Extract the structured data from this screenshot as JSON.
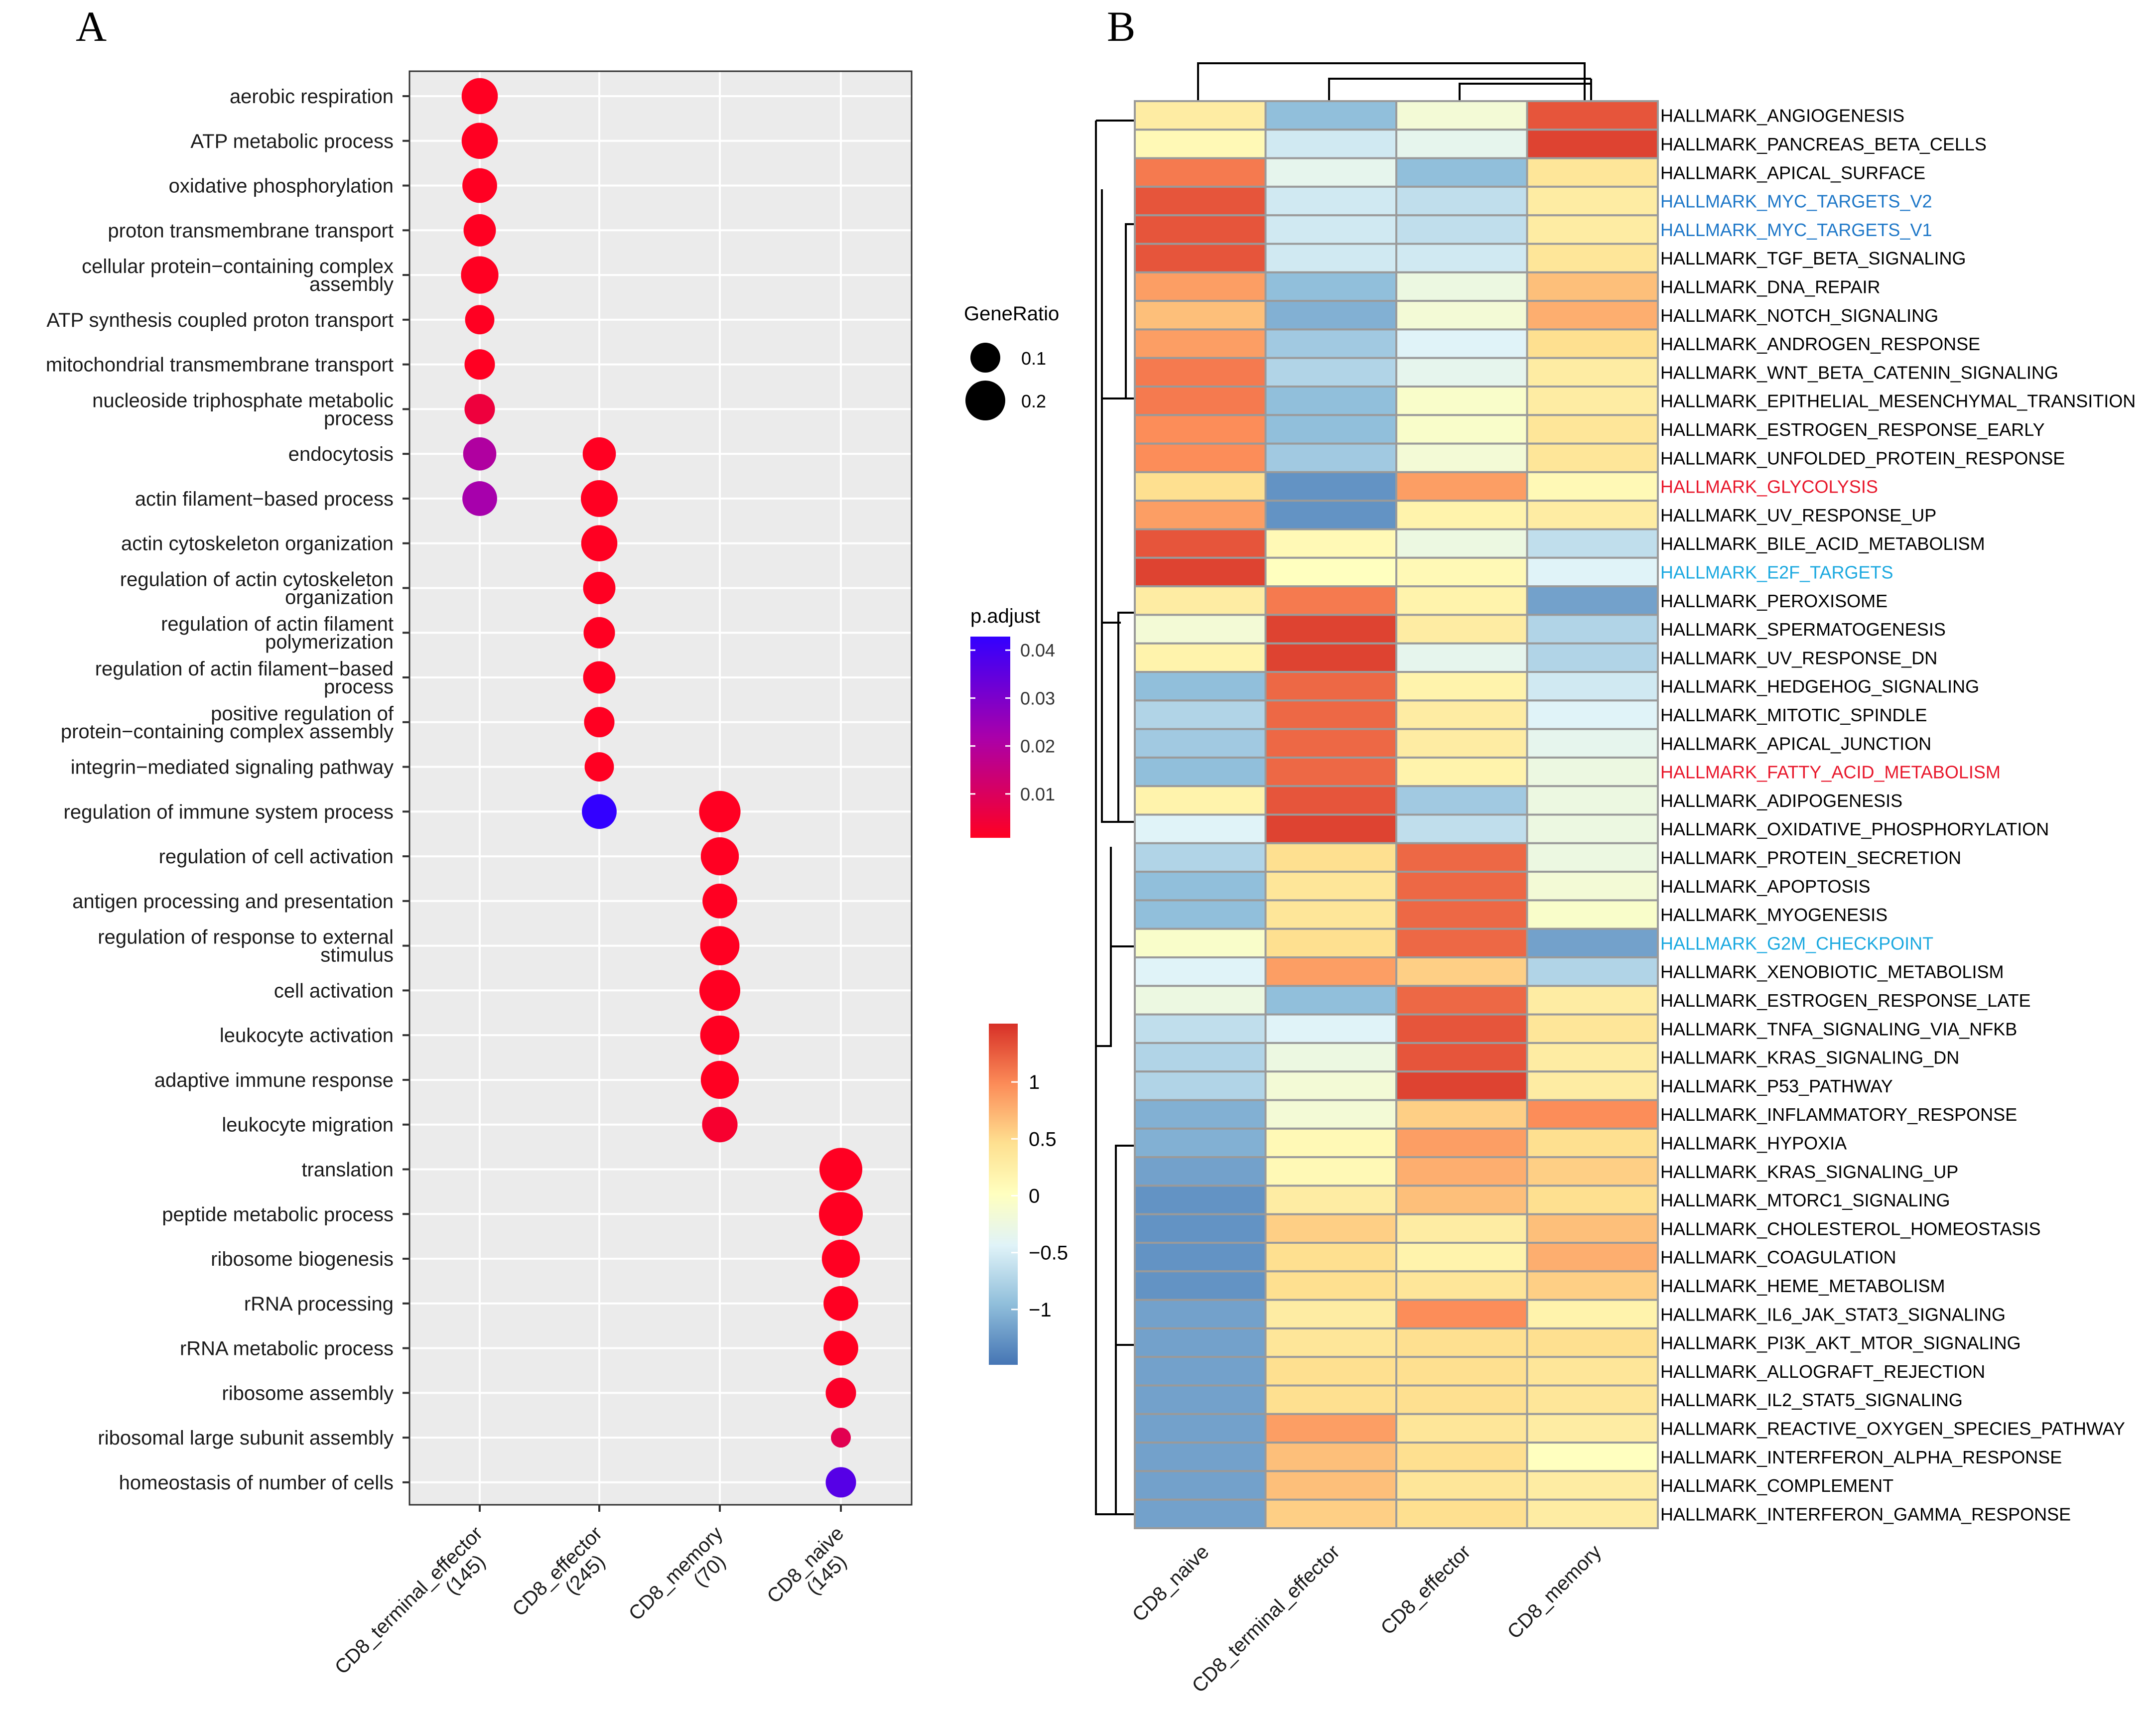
{
  "panel_a": {
    "letter": "A",
    "legend_size_title": "GeneRatio",
    "legend_size_labels": [
      "0.1",
      "0.2"
    ],
    "legend_color_title": "p.adjust",
    "legend_color_labels": [
      "0.04",
      "0.03",
      "0.02",
      "0.01"
    ],
    "legend_color_values": [
      0.04,
      0.03,
      0.02,
      0.01
    ],
    "colors": {
      "low": "#ff0000",
      "mid": "#aa00aa",
      "high": "#0000ff",
      "panel_bg": "#ebebeb",
      "grid": "#ffffff"
    }
  },
  "panel_b": {
    "letter": "B",
    "legend_ticks": [
      "1",
      "0.5",
      "0",
      "−0.5",
      "−1"
    ],
    "legend_values": [
      1,
      0.5,
      0,
      -0.5,
      -1
    ],
    "color_stops": [
      "#4575b4",
      "#91bfdb",
      "#e0f3f8",
      "#ffffbf",
      "#fee090",
      "#fc8d59",
      "#d73027"
    ],
    "label_colors": {
      "default": "#000000",
      "blue": "#1f78c8",
      "red": "#e8182c",
      "cyan": "#1ca9e0"
    }
  },
  "chart_data": [
    {
      "type": "scatter",
      "title": "",
      "xlabel": "",
      "ylabel": "",
      "categories": [
        "CD8_terminal_effector\n(145)",
        "CD8_effector\n(245)",
        "CD8_memory\n(70)",
        "CD8_naive\n(145)"
      ],
      "terms": [
        "aerobic respiration",
        "ATP metabolic process",
        "oxidative phosphorylation",
        "proton transmembrane transport",
        "cellular protein−containing complex\nassembly",
        "ATP synthesis coupled proton transport",
        "mitochondrial transmembrane transport",
        "nucleoside triphosphate metabolic\nprocess",
        "endocytosis",
        "actin filament−based process",
        "actin cytoskeleton organization",
        "regulation of actin cytoskeleton\norganization",
        "regulation of actin filament\npolymerization",
        "regulation of actin filament−based\nprocess",
        "positive regulation of\nprotein−containing complex assembly",
        "integrin−mediated signaling pathway",
        "regulation of immune system process",
        "regulation of cell activation",
        "antigen processing and presentation",
        "regulation of response to external\nstimulus",
        "cell activation",
        "leukocyte activation",
        "adaptive immune response",
        "leukocyte migration",
        "translation",
        "peptide metabolic process",
        "ribosome biogenesis",
        "rRNA processing",
        "rRNA metabolic process",
        "ribosome assembly",
        "ribosomal large subunit assembly",
        "homeostasis of number of cells"
      ],
      "points": [
        {
          "term": 0,
          "cat": 0,
          "gene_ratio": 0.17,
          "p_adjust": 0.001
        },
        {
          "term": 1,
          "cat": 0,
          "gene_ratio": 0.17,
          "p_adjust": 0.001
        },
        {
          "term": 2,
          "cat": 0,
          "gene_ratio": 0.15,
          "p_adjust": 0.001
        },
        {
          "term": 3,
          "cat": 0,
          "gene_ratio": 0.12,
          "p_adjust": 0.001
        },
        {
          "term": 4,
          "cat": 0,
          "gene_ratio": 0.19,
          "p_adjust": 0.001
        },
        {
          "term": 5,
          "cat": 0,
          "gene_ratio": 0.09,
          "p_adjust": 0.001
        },
        {
          "term": 6,
          "cat": 0,
          "gene_ratio": 0.1,
          "p_adjust": 0.001
        },
        {
          "term": 7,
          "cat": 0,
          "gene_ratio": 0.1,
          "p_adjust": 0.005
        },
        {
          "term": 8,
          "cat": 0,
          "gene_ratio": 0.13,
          "p_adjust": 0.02
        },
        {
          "term": 9,
          "cat": 0,
          "gene_ratio": 0.15,
          "p_adjust": 0.022
        },
        {
          "term": 8,
          "cat": 1,
          "gene_ratio": 0.13,
          "p_adjust": 0.001
        },
        {
          "term": 9,
          "cat": 1,
          "gene_ratio": 0.18,
          "p_adjust": 0.001
        },
        {
          "term": 10,
          "cat": 1,
          "gene_ratio": 0.17,
          "p_adjust": 0.001
        },
        {
          "term": 11,
          "cat": 1,
          "gene_ratio": 0.12,
          "p_adjust": 0.001
        },
        {
          "term": 12,
          "cat": 1,
          "gene_ratio": 0.11,
          "p_adjust": 0.001
        },
        {
          "term": 13,
          "cat": 1,
          "gene_ratio": 0.12,
          "p_adjust": 0.001
        },
        {
          "term": 14,
          "cat": 1,
          "gene_ratio": 0.1,
          "p_adjust": 0.001
        },
        {
          "term": 15,
          "cat": 1,
          "gene_ratio": 0.09,
          "p_adjust": 0.001
        },
        {
          "term": 16,
          "cat": 1,
          "gene_ratio": 0.15,
          "p_adjust": 0.042
        },
        {
          "term": 16,
          "cat": 2,
          "gene_ratio": 0.26,
          "p_adjust": 0.001
        },
        {
          "term": 17,
          "cat": 2,
          "gene_ratio": 0.2,
          "p_adjust": 0.001
        },
        {
          "term": 18,
          "cat": 2,
          "gene_ratio": 0.15,
          "p_adjust": 0.001
        },
        {
          "term": 19,
          "cat": 2,
          "gene_ratio": 0.22,
          "p_adjust": 0.001
        },
        {
          "term": 20,
          "cat": 2,
          "gene_ratio": 0.25,
          "p_adjust": 0.001
        },
        {
          "term": 21,
          "cat": 2,
          "gene_ratio": 0.22,
          "p_adjust": 0.001
        },
        {
          "term": 22,
          "cat": 2,
          "gene_ratio": 0.2,
          "p_adjust": 0.001
        },
        {
          "term": 23,
          "cat": 2,
          "gene_ratio": 0.16,
          "p_adjust": 0.003
        },
        {
          "term": 24,
          "cat": 3,
          "gene_ratio": 0.29,
          "p_adjust": 0.001
        },
        {
          "term": 25,
          "cat": 3,
          "gene_ratio": 0.31,
          "p_adjust": 0.001
        },
        {
          "term": 26,
          "cat": 3,
          "gene_ratio": 0.2,
          "p_adjust": 0.001
        },
        {
          "term": 27,
          "cat": 3,
          "gene_ratio": 0.15,
          "p_adjust": 0.001
        },
        {
          "term": 28,
          "cat": 3,
          "gene_ratio": 0.15,
          "p_adjust": 0.001
        },
        {
          "term": 29,
          "cat": 3,
          "gene_ratio": 0.1,
          "p_adjust": 0.002
        },
        {
          "term": 30,
          "cat": 3,
          "gene_ratio": 0.05,
          "p_adjust": 0.008
        },
        {
          "term": 31,
          "cat": 3,
          "gene_ratio": 0.1,
          "p_adjust": 0.036
        }
      ],
      "size_range": [
        0.05,
        0.31
      ],
      "color_range": [
        0.001,
        0.042
      ]
    },
    {
      "type": "heatmap",
      "title": "",
      "xlabel": "",
      "ylabel": "",
      "columns": [
        "CD8_naive",
        "CD8_terminal_effector",
        "CD8_effector",
        "CD8_memory"
      ],
      "rows": [
        "HALLMARK_ANGIOGENESIS",
        "HALLMARK_PANCREAS_BETA_CELLS",
        "HALLMARK_APICAL_SURFACE",
        "HALLMARK_MYC_TARGETS_V2",
        "HALLMARK_MYC_TARGETS_V1",
        "HALLMARK_TGF_BETA_SIGNALING",
        "HALLMARK_DNA_REPAIR",
        "HALLMARK_NOTCH_SIGNALING",
        "HALLMARK_ANDROGEN_RESPONSE",
        "HALLMARK_WNT_BETA_CATENIN_SIGNALING",
        "HALLMARK_EPITHELIAL_MESENCHYMAL_TRANSITION",
        "HALLMARK_ESTROGEN_RESPONSE_EARLY",
        "HALLMARK_UNFOLDED_PROTEIN_RESPONSE",
        "HALLMARK_GLYCOLYSIS",
        "HALLMARK_UV_RESPONSE_UP",
        "HALLMARK_BILE_ACID_METABOLISM",
        "HALLMARK_E2F_TARGETS",
        "HALLMARK_PEROXISOME",
        "HALLMARK_SPERMATOGENESIS",
        "HALLMARK_UV_RESPONSE_DN",
        "HALLMARK_HEDGEHOG_SIGNALING",
        "HALLMARK_MITOTIC_SPINDLE",
        "HALLMARK_APICAL_JUNCTION",
        "HALLMARK_FATTY_ACID_METABOLISM",
        "HALLMARK_ADIPOGENESIS",
        "HALLMARK_OXIDATIVE_PHOSPHORYLATION",
        "HALLMARK_PROTEIN_SECRETION",
        "HALLMARK_APOPTOSIS",
        "HALLMARK_MYOGENESIS",
        "HALLMARK_G2M_CHECKPOINT",
        "HALLMARK_XENOBIOTIC_METABOLISM",
        "HALLMARK_ESTROGEN_RESPONSE_LATE",
        "HALLMARK_TNFA_SIGNALING_VIA_NFKB",
        "HALLMARK_KRAS_SIGNALING_DN",
        "HALLMARK_P53_PATHWAY",
        "HALLMARK_INFLAMMATORY_RESPONSE",
        "HALLMARK_HYPOXIA",
        "HALLMARK_KRAS_SIGNALING_UP",
        "HALLMARK_MTORC1_SIGNALING",
        "HALLMARK_CHOLESTEROL_HOMEOSTASIS",
        "HALLMARK_COAGULATION",
        "HALLMARK_HEME_METABOLISM",
        "HALLMARK_IL6_JAK_STAT3_SIGNALING",
        "HALLMARK_PI3K_AKT_MTOR_SIGNALING",
        "HALLMARK_ALLOGRAFT_REJECTION",
        "HALLMARK_IL2_STAT5_SIGNALING",
        "HALLMARK_REACTIVE_OXYGEN_SPECIES_PATHWAY",
        "HALLMARK_INTERFERON_ALPHA_RESPONSE",
        "HALLMARK_COMPLEMENT",
        "HALLMARK_INTERFERON_GAMMA_RESPONSE"
      ],
      "row_label_colors": [
        "default",
        "default",
        "default",
        "blue",
        "blue",
        "default",
        "default",
        "default",
        "default",
        "default",
        "default",
        "default",
        "default",
        "red",
        "default",
        "default",
        "cyan",
        "default",
        "default",
        "default",
        "default",
        "default",
        "default",
        "red",
        "default",
        "default",
        "default",
        "default",
        "default",
        "cyan",
        "default",
        "default",
        "default",
        "default",
        "default",
        "default",
        "default",
        "default",
        "default",
        "default",
        "default",
        "default",
        "default",
        "default",
        "default",
        "default",
        "default",
        "default",
        "default",
        "default"
      ],
      "values": [
        [
          0.3,
          -1.0,
          -0.2,
          1.3
        ],
        [
          0.1,
          -0.6,
          -0.4,
          1.4
        ],
        [
          1.1,
          -0.4,
          -1.0,
          0.4
        ],
        [
          1.3,
          -0.6,
          -0.7,
          0.3
        ],
        [
          1.3,
          -0.6,
          -0.7,
          0.3
        ],
        [
          1.3,
          -0.6,
          -0.6,
          0.4
        ],
        [
          0.9,
          -1.0,
          -0.3,
          0.7
        ],
        [
          0.7,
          -1.1,
          -0.2,
          0.8
        ],
        [
          0.9,
          -0.9,
          -0.5,
          0.5
        ],
        [
          1.1,
          -0.8,
          -0.4,
          0.3
        ],
        [
          1.1,
          -1.0,
          -0.1,
          0.3
        ],
        [
          1.0,
          -1.0,
          -0.1,
          0.4
        ],
        [
          1.0,
          -0.9,
          -0.2,
          0.4
        ],
        [
          0.5,
          -1.3,
          0.9,
          0.1
        ],
        [
          0.9,
          -1.3,
          0.2,
          0.3
        ],
        [
          1.3,
          0.1,
          -0.3,
          -0.7
        ],
        [
          1.4,
          0.0,
          0.1,
          -0.5
        ],
        [
          0.3,
          1.1,
          0.2,
          -1.2
        ],
        [
          -0.2,
          1.4,
          0.3,
          -0.8
        ],
        [
          0.2,
          1.4,
          -0.4,
          -0.8
        ],
        [
          -1.0,
          1.2,
          0.2,
          -0.6
        ],
        [
          -0.8,
          1.2,
          0.3,
          -0.5
        ],
        [
          -0.9,
          1.2,
          0.3,
          -0.4
        ],
        [
          -1.0,
          1.2,
          0.2,
          -0.3
        ],
        [
          0.2,
          1.3,
          -0.9,
          -0.3
        ],
        [
          -0.5,
          1.4,
          -0.7,
          -0.3
        ],
        [
          -0.8,
          0.5,
          1.2,
          -0.3
        ],
        [
          -1.0,
          0.4,
          1.2,
          -0.2
        ],
        [
          -1.0,
          0.4,
          1.2,
          -0.1
        ],
        [
          -0.1,
          0.5,
          1.2,
          -1.2
        ],
        [
          -0.5,
          0.9,
          0.6,
          -0.8
        ],
        [
          -0.3,
          -1.0,
          1.2,
          0.3
        ],
        [
          -0.7,
          -0.5,
          1.3,
          0.4
        ],
        [
          -0.8,
          -0.3,
          1.3,
          0.3
        ],
        [
          -0.8,
          -0.2,
          1.4,
          0.3
        ],
        [
          -1.1,
          -0.2,
          0.6,
          1.0
        ],
        [
          -1.1,
          0.1,
          0.9,
          0.5
        ],
        [
          -1.2,
          0.1,
          0.8,
          0.6
        ],
        [
          -1.3,
          0.3,
          0.7,
          0.5
        ],
        [
          -1.3,
          0.6,
          0.3,
          0.7
        ],
        [
          -1.3,
          0.5,
          0.2,
          0.8
        ],
        [
          -1.3,
          0.5,
          0.4,
          0.6
        ],
        [
          -1.2,
          0.3,
          1.0,
          0.2
        ],
        [
          -1.2,
          0.4,
          0.5,
          0.5
        ],
        [
          -1.2,
          0.5,
          0.5,
          0.4
        ],
        [
          -1.2,
          0.5,
          0.5,
          0.4
        ],
        [
          -1.2,
          0.9,
          0.4,
          0.3
        ],
        [
          -1.2,
          0.7,
          0.5,
          0.0
        ],
        [
          -1.2,
          0.7,
          0.4,
          0.3
        ],
        [
          -1.2,
          0.6,
          0.5,
          0.3
        ]
      ],
      "ylim": [
        -1.5,
        1.5
      ]
    }
  ]
}
